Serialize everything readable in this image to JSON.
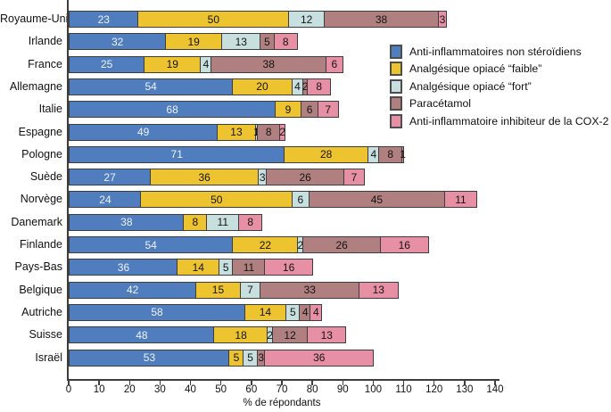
{
  "chart_data": {
    "type": "bar",
    "orientation": "horizontal",
    "stacked": true,
    "title": "",
    "xlabel": "% de répondants",
    "xlim": [
      0,
      140
    ],
    "xtick_step": 10,
    "grid": false,
    "legend_position": "upper-right",
    "categories": [
      "Royaume-Uni",
      "Irlande",
      "France",
      "Allemagne",
      "Italie",
      "Espagne",
      "Pologne",
      "Suède",
      "Norvège",
      "Danemark",
      "Finlande",
      "Pays-Bas",
      "Belgique",
      "Autriche",
      "Suisse",
      "Israël"
    ],
    "series": [
      {
        "name": "Anti-inflammatoires non stéroïdiens",
        "color": "#4f7dbd",
        "label_color": "#eef2f8",
        "values": [
          23,
          32,
          25,
          54,
          68,
          49,
          71,
          27,
          24,
          38,
          54,
          36,
          42,
          58,
          48,
          53
        ]
      },
      {
        "name": "Analgésique opiacé “faible”",
        "color": "#edc32f",
        "label_color": "#141414",
        "values": [
          50,
          19,
          19,
          20,
          9,
          13,
          28,
          36,
          50,
          8,
          22,
          14,
          15,
          14,
          18,
          5
        ]
      },
      {
        "name": "Analgésique opiacé “fort”",
        "color": "#c8dfe0",
        "label_color": "#141414",
        "values": [
          12,
          13,
          4,
          4,
          0,
          1,
          4,
          3,
          6,
          11,
          2,
          5,
          7,
          5,
          2,
          5
        ]
      },
      {
        "name": "Paracétamol",
        "color": "#b07f7f",
        "label_color": "#141414",
        "values": [
          38,
          5,
          38,
          2,
          6,
          8,
          8,
          26,
          45,
          0,
          26,
          11,
          33,
          4,
          12,
          3
        ]
      },
      {
        "name": "Anti-inflammatoire inhibiteur de la COX-2",
        "color": "#e78fa4",
        "label_color": "#141414",
        "values": [
          3,
          8,
          6,
          8,
          7,
          2,
          1,
          7,
          11,
          8,
          16,
          16,
          13,
          4,
          13,
          36
        ]
      }
    ]
  },
  "colors": {
    "axis": "#3d3d3d",
    "segment_border": "#3d3d3d",
    "background": "#ffffff"
  }
}
